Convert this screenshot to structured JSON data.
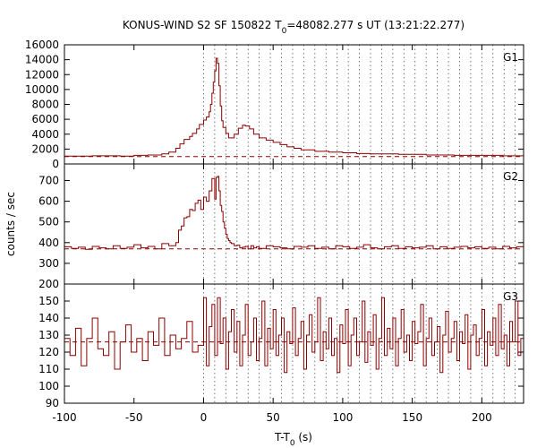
{
  "chart_data": {
    "type": "line",
    "title": {
      "prefix": "KONUS-WIND S2 SF 150822 T",
      "sub": "0",
      "suffix": "=48082.277 s UT (13:21:22.277)"
    },
    "xlabel": {
      "prefix": "T-T",
      "sub": "0",
      "suffix": " (s)"
    },
    "ylabel": "counts / sec",
    "xlim": [
      -100,
      230
    ],
    "xticks": [
      -100,
      -50,
      0,
      50,
      100,
      150,
      200
    ],
    "xtick_labels": [
      "-100",
      "-50",
      "0",
      "50",
      "100",
      "150",
      "200"
    ],
    "grid": "dotted vertical lines at interval boundaries",
    "vlines": [
      0,
      8,
      16,
      24,
      32,
      40,
      48,
      56,
      64,
      72,
      80,
      88,
      96,
      104,
      112,
      120,
      128,
      136,
      144,
      152,
      160,
      168,
      176,
      184,
      192,
      200,
      208,
      216,
      224
    ],
    "line_color": "#8b0000",
    "panels": [
      {
        "name": "G1",
        "ylim": [
          0,
          16000
        ],
        "yticks": [
          0,
          2000,
          4000,
          6000,
          8000,
          10000,
          12000,
          14000,
          16000
        ],
        "ytick_labels": [
          "0",
          "2000",
          "4000",
          "6000",
          "8000",
          "10000",
          "12000",
          "14000",
          "16000"
        ],
        "background": 1000,
        "series": {
          "x": [
            -100,
            -80,
            -60,
            -50,
            -40,
            -30,
            -25,
            -20,
            -17,
            -14,
            -10,
            -8,
            -5,
            -3,
            0,
            2,
            4,
            5,
            6,
            7,
            8,
            9,
            10,
            11,
            12,
            13,
            14,
            16,
            18,
            20,
            22,
            25,
            28,
            30,
            33,
            36,
            40,
            45,
            50,
            55,
            60,
            65,
            70,
            80,
            90,
            100,
            110,
            120,
            140,
            160,
            180,
            200,
            215,
            230
          ],
          "y": [
            1050,
            1100,
            1050,
            1150,
            1200,
            1350,
            1600,
            2100,
            2700,
            3300,
            3700,
            4100,
            4700,
            5300,
            5900,
            6300,
            7000,
            8000,
            9500,
            11000,
            12500,
            14200,
            13500,
            10500,
            7800,
            5800,
            4900,
            4100,
            3500,
            3500,
            4000,
            4800,
            5200,
            5100,
            4700,
            4000,
            3500,
            3200,
            2900,
            2600,
            2300,
            2100,
            1900,
            1700,
            1600,
            1500,
            1400,
            1350,
            1300,
            1200,
            1150,
            1150,
            1100,
            1100
          ]
        }
      },
      {
        "name": "G2",
        "ylim": [
          200,
          780
        ],
        "yticks": [
          200,
          300,
          400,
          500,
          600,
          700
        ],
        "ytick_labels": [
          "200",
          "300",
          "400",
          "500",
          "600",
          "700"
        ],
        "background": 370,
        "series": {
          "x": [
            -100,
            -95,
            -90,
            -85,
            -80,
            -75,
            -70,
            -65,
            -60,
            -55,
            -50,
            -45,
            -40,
            -35,
            -30,
            -25,
            -20,
            -18,
            -16,
            -14,
            -12,
            -10,
            -8,
            -6,
            -4,
            -2,
            0,
            2,
            4,
            6,
            8,
            9,
            10,
            11,
            12,
            13,
            14,
            15,
            16,
            17,
            18,
            19,
            20,
            22,
            24,
            26,
            28,
            30,
            32,
            34,
            36,
            38,
            40,
            45,
            50,
            55,
            60,
            65,
            70,
            75,
            80,
            85,
            90,
            95,
            100,
            105,
            110,
            115,
            120,
            125,
            130,
            135,
            140,
            145,
            150,
            155,
            160,
            165,
            170,
            175,
            180,
            185,
            190,
            195,
            200,
            205,
            210,
            215,
            220,
            225,
            230
          ],
          "y": [
            380,
            372,
            378,
            368,
            382,
            375,
            370,
            385,
            372,
            378,
            390,
            375,
            382,
            370,
            395,
            385,
            400,
            460,
            480,
            520,
            525,
            560,
            555,
            590,
            605,
            560,
            620,
            600,
            650,
            710,
            610,
            715,
            720,
            650,
            580,
            550,
            500,
            470,
            440,
            420,
            410,
            400,
            395,
            385,
            388,
            375,
            378,
            382,
            370,
            385,
            375,
            380,
            372,
            385,
            380,
            375,
            370,
            382,
            378,
            385,
            372,
            378,
            370,
            385,
            380,
            372,
            378,
            390,
            375,
            370,
            380,
            385,
            372,
            380,
            375,
            378,
            385,
            370,
            380,
            372,
            378,
            382,
            375,
            380,
            372,
            378,
            370,
            382,
            375,
            380,
            375
          ]
        }
      },
      {
        "name": "G3",
        "ylim": [
          90,
          160
        ],
        "yticks": [
          90,
          100,
          110,
          120,
          130,
          140,
          150
        ],
        "ytick_labels": [
          "90",
          "100",
          "110",
          "120",
          "130",
          "140",
          "150"
        ],
        "background": 126,
        "series": {
          "x": [
            -100,
            -96,
            -92,
            -88,
            -84,
            -80,
            -76,
            -72,
            -68,
            -64,
            -60,
            -56,
            -52,
            -48,
            -44,
            -40,
            -36,
            -32,
            -28,
            -24,
            -20,
            -16,
            -12,
            -8,
            -4,
            0,
            2,
            4,
            6,
            8,
            10,
            12,
            14,
            16,
            18,
            20,
            22,
            24,
            26,
            28,
            30,
            32,
            34,
            36,
            38,
            40,
            42,
            44,
            46,
            48,
            50,
            52,
            54,
            56,
            58,
            60,
            62,
            64,
            66,
            68,
            70,
            72,
            74,
            76,
            78,
            80,
            82,
            84,
            86,
            88,
            90,
            92,
            94,
            96,
            98,
            100,
            102,
            104,
            106,
            108,
            110,
            112,
            114,
            116,
            118,
            120,
            122,
            124,
            126,
            128,
            130,
            132,
            134,
            136,
            138,
            140,
            142,
            144,
            146,
            148,
            150,
            152,
            154,
            156,
            158,
            160,
            162,
            164,
            166,
            168,
            170,
            172,
            174,
            176,
            178,
            180,
            182,
            184,
            186,
            188,
            190,
            192,
            194,
            196,
            198,
            200,
            202,
            204,
            206,
            208,
            210,
            212,
            214,
            216,
            218,
            220,
            222,
            224,
            226,
            228
          ],
          "y": [
            128,
            118,
            134,
            112,
            128,
            140,
            122,
            118,
            132,
            110,
            126,
            136,
            120,
            128,
            115,
            132,
            124,
            140,
            118,
            130,
            122,
            128,
            138,
            120,
            124,
            152,
            112,
            135,
            148,
            118,
            152,
            125,
            140,
            110,
            132,
            145,
            120,
            138,
            112,
            130,
            148,
            118,
            126,
            140,
            115,
            128,
            150,
            112,
            134,
            122,
            145,
            118,
            130,
            140,
            108,
            132,
            125,
            146,
            118,
            128,
            138,
            110,
            130,
            142,
            120,
            126,
            152,
            115,
            132,
            122,
            140,
            118,
            128,
            108,
            136,
            125,
            145,
            112,
            130,
            140,
            118,
            126,
            150,
            114,
            132,
            124,
            142,
            110,
            128,
            152,
            118,
            134,
            122,
            140,
            112,
            128,
            145,
            120,
            130,
            115,
            138,
            125,
            132,
            148,
            112,
            128,
            140,
            118,
            126,
            135,
            108,
            130,
            144,
            120,
            128,
            138,
            115,
            132,
            125,
            142,
            110,
            130,
            136,
            118,
            128,
            145,
            112,
            132,
            124,
            140,
            118,
            148,
            122,
            130,
            112,
            138,
            126,
            150,
            118,
            128
          ]
        }
      }
    ]
  }
}
